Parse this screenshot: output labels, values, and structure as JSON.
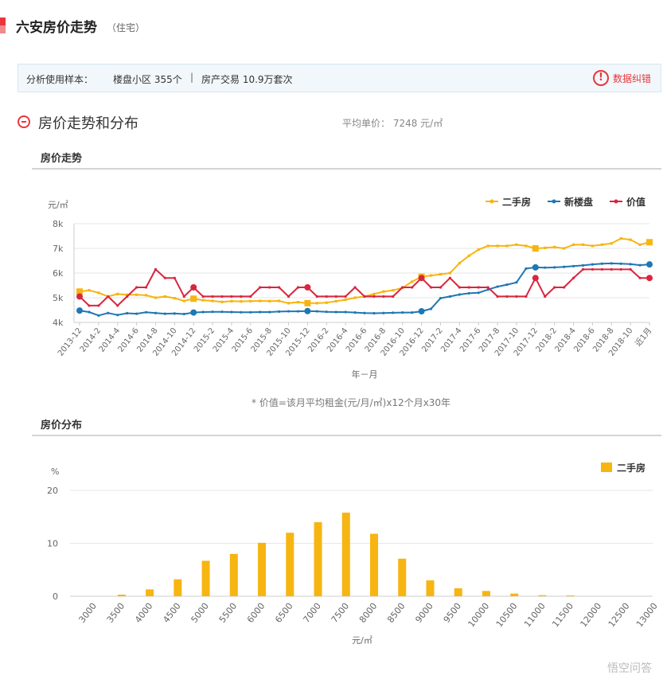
{
  "header": {
    "title": "六安房价走势",
    "subtitle": "（住宅）"
  },
  "sample": {
    "label": "分析使用样本：",
    "communities": "楼盘小区 355个",
    "separator": "|",
    "transactions": "房产交易 10.9万套次",
    "correction_label": "数据纠错",
    "correction_icon": "warning-icon"
  },
  "section": {
    "title": "房价走势和分布",
    "average": "平均单价： 7248 元/㎡"
  },
  "trend": {
    "heading": "房价走势",
    "footnote": "* 价值=该月平均租金(元/月/㎡)x12个月x30年"
  },
  "distribution": {
    "heading": "房价分布"
  },
  "watermark": "悟空问答",
  "colors": {
    "second_hand": "#f7b512",
    "new_building": "#1f77b4",
    "value": "#d9263f"
  },
  "chart_data": [
    {
      "type": "line",
      "title": "",
      "ylabel": "元/㎡",
      "xlabel": "年－月",
      "ylim": [
        4000,
        8000
      ],
      "yticks": [
        "4k",
        "5k",
        "6k",
        "7k",
        "8k"
      ],
      "grid": true,
      "legend_position": "top-right",
      "categories": [
        "2013-12",
        "2014-1",
        "2014-2",
        "2014-3",
        "2014-4",
        "2014-5",
        "2014-6",
        "2014-7",
        "2014-8",
        "2014-9",
        "2014-10",
        "2014-11",
        "2014-12",
        "2015-1",
        "2015-2",
        "2015-3",
        "2015-4",
        "2015-5",
        "2015-6",
        "2015-7",
        "2015-8",
        "2015-9",
        "2015-10",
        "2015-11",
        "2015-12",
        "2016-1",
        "2016-2",
        "2016-3",
        "2016-4",
        "2016-5",
        "2016-6",
        "2016-7",
        "2016-8",
        "2016-9",
        "2016-10",
        "2016-11",
        "2016-12",
        "2017-1",
        "2017-2",
        "2017-3",
        "2017-4",
        "2017-5",
        "2017-6",
        "2017-7",
        "2017-8",
        "2017-9",
        "2017-10",
        "2017-11",
        "2017-12",
        "2018-1",
        "2018-2",
        "2018-3",
        "2018-4",
        "2018-5",
        "2018-6",
        "2018-7",
        "2018-8",
        "2018-9",
        "2018-10",
        "2018-11",
        "近1月"
      ],
      "tick_labels": [
        "2013-12",
        "2014-2",
        "2014-4",
        "2014-6",
        "2014-8",
        "2014-10",
        "2014-12",
        "2015-2",
        "2015-4",
        "2015-6",
        "2015-8",
        "2015-10",
        "2015-12",
        "2016-2",
        "2016-4",
        "2016-6",
        "2016-8",
        "2016-10",
        "2016-12",
        "2017-2",
        "2017-4",
        "2017-6",
        "2017-8",
        "2017-10",
        "2017-12",
        "2018-2",
        "2018-4",
        "2018-6",
        "2018-8",
        "2018-10",
        "近1月"
      ],
      "series": [
        {
          "name": "二手房",
          "color": "#f7b512",
          "marker": "square",
          "values": [
            5250,
            5300,
            5200,
            5050,
            5150,
            5120,
            5120,
            5100,
            5000,
            5050,
            4980,
            4870,
            4960,
            4900,
            4870,
            4830,
            4860,
            4850,
            4860,
            4870,
            4860,
            4870,
            4780,
            4820,
            4780,
            4780,
            4800,
            4860,
            4920,
            5000,
            5050,
            5150,
            5250,
            5300,
            5400,
            5650,
            5850,
            5900,
            5950,
            6000,
            6400,
            6700,
            6950,
            7100,
            7100,
            7100,
            7150,
            7100,
            7000,
            7020,
            7050,
            7000,
            7150,
            7150,
            7100,
            7150,
            7200,
            7400,
            7350,
            7150,
            7250
          ]
        },
        {
          "name": "新楼盘",
          "color": "#1f77b4",
          "marker": "circle",
          "values": [
            4480,
            4420,
            4280,
            4380,
            4300,
            4370,
            4350,
            4410,
            4380,
            4350,
            4360,
            4340,
            4400,
            4420,
            4430,
            4430,
            4420,
            4410,
            4410,
            4420,
            4420,
            4440,
            4450,
            4450,
            4460,
            4450,
            4430,
            4420,
            4420,
            4400,
            4380,
            4370,
            4380,
            4390,
            4400,
            4400,
            4450,
            4550,
            4980,
            5050,
            5130,
            5180,
            5200,
            5330,
            5450,
            5530,
            5620,
            6180,
            6230,
            6220,
            6230,
            6250,
            6280,
            6310,
            6350,
            6380,
            6390,
            6380,
            6360,
            6320,
            6350
          ]
        },
        {
          "name": "价值",
          "color": "#d9263f",
          "marker": "circle",
          "values": [
            5050,
            4680,
            4680,
            5050,
            4680,
            5050,
            5420,
            5420,
            6150,
            5800,
            5800,
            5050,
            5420,
            5050,
            5050,
            5050,
            5050,
            5050,
            5050,
            5420,
            5420,
            5420,
            5050,
            5420,
            5420,
            5050,
            5050,
            5050,
            5050,
            5420,
            5050,
            5050,
            5050,
            5050,
            5420,
            5420,
            5800,
            5420,
            5420,
            5800,
            5420,
            5420,
            5420,
            5420,
            5050,
            5050,
            5050,
            5050,
            5800,
            5050,
            5420,
            5420,
            5800,
            6150,
            6150,
            6150,
            6150,
            6150,
            6150,
            5800,
            5800
          ]
        }
      ]
    },
    {
      "type": "bar",
      "title": "",
      "ylabel": "%",
      "xlabel": "元/㎡",
      "ylim": [
        0,
        20
      ],
      "yticks": [
        0,
        10,
        20
      ],
      "grid": true,
      "legend_position": "top-right",
      "categories": [
        "3000",
        "3500",
        "4000",
        "4500",
        "5000",
        "5500",
        "6000",
        "6500",
        "7000",
        "7500",
        "8000",
        "8500",
        "9000",
        "9500",
        "10000",
        "10500",
        "11000",
        "11500",
        "12000",
        "12500",
        "13000"
      ],
      "series": [
        {
          "name": "二手房",
          "color": "#f7b512",
          "values": [
            0,
            0.3,
            1.3,
            3.2,
            6.7,
            8.0,
            10.1,
            12.0,
            14.0,
            15.8,
            11.8,
            7.1,
            3.0,
            1.5,
            1.0,
            0.5,
            0.2,
            0.15,
            0,
            0,
            0
          ]
        }
      ]
    }
  ]
}
